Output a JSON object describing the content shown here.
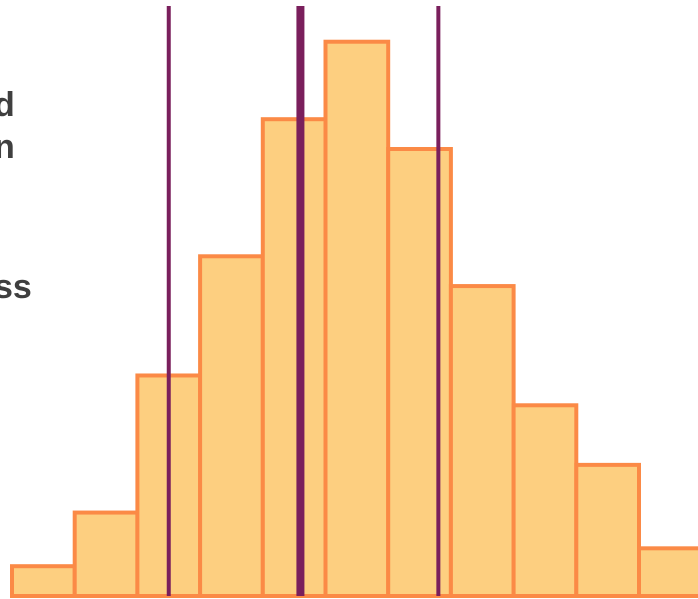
{
  "clipped_text": [
    "d",
    "n",
    "ss"
  ],
  "colors": {
    "bar_fill": "#fdcf80",
    "bar_stroke": "#fb8a46",
    "line": "#7a1f5c"
  },
  "chart_data": {
    "type": "bar",
    "title": "",
    "xlabel": "",
    "ylabel": "",
    "categories": [
      "",
      "",
      "",
      "",
      "",
      "",
      "",
      "",
      "",
      "",
      ""
    ],
    "values": [
      5,
      14,
      37,
      57,
      80,
      93,
      75,
      52,
      32,
      22,
      8
    ],
    "ylim": [
      0,
      100
    ],
    "vertical_lines": [
      {
        "bin_index": 2.5,
        "weight": "thin"
      },
      {
        "bin_index": 4.6,
        "weight": "thick"
      },
      {
        "bin_index": 6.8,
        "weight": "thin"
      }
    ],
    "grid": false
  }
}
